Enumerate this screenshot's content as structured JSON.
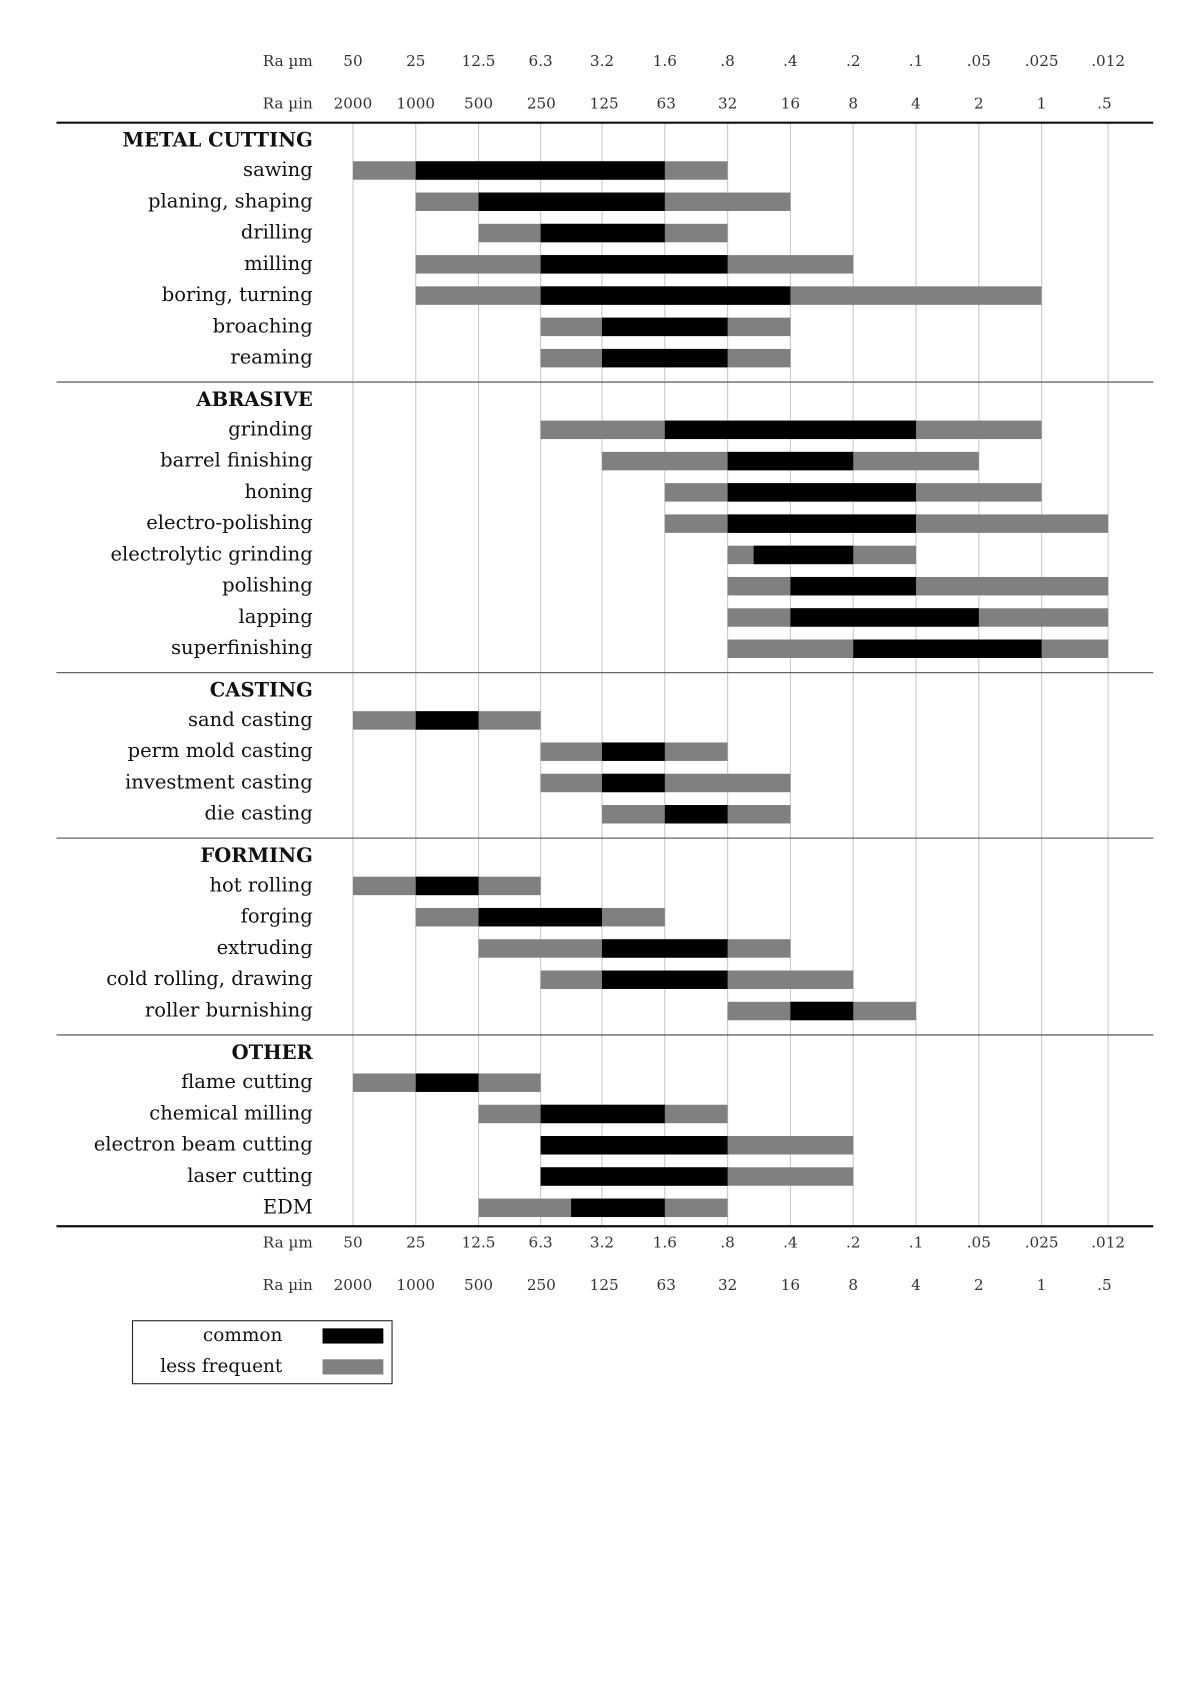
{
  "chart_data": {
    "type": "range-bar",
    "xlabel": "Ra µm",
    "x2label": "Ra µin",
    "xscale": "log",
    "xlim": [
      50,
      0.0125
    ],
    "xticks": [
      50,
      25,
      12.5,
      6.3,
      3.2,
      1.6,
      {
        "value": 0.8,
        "label": ".8"
      },
      {
        "value": 0.4,
        "label": ".4"
      },
      {
        "value": 0.2,
        "label": ".2"
      },
      {
        "value": 0.1,
        "label": ".1"
      },
      {
        "value": 0.05,
        "label": ".05"
      },
      {
        "value": 0.025,
        "label": ".025"
      },
      {
        "value": 0.012,
        "label": ".012"
      }
    ],
    "x2lim": [
      2000,
      0.5
    ],
    "x2ticks": [
      2000,
      1000,
      500,
      250,
      125,
      63,
      32,
      16,
      8,
      4,
      2,
      1,
      {
        "value": 0.5,
        "label": ".5"
      }
    ],
    "grid": true,
    "series": [
      {
        "name": "common",
        "color": "#000000"
      },
      {
        "name": "less frequent",
        "color": "#808080"
      }
    ],
    "groups": [
      {
        "name": "METAL CUTTING",
        "processes": [
          {
            "name": "sawing",
            "ranges": [
              [
                25,
                1.6
              ],
              [
                50,
                0.8
              ]
            ]
          },
          {
            "name": "planing, shaping",
            "ranges": [
              [
                12.5,
                1.6
              ],
              [
                25,
                0.4
              ]
            ]
          },
          {
            "name": "drilling",
            "ranges": [
              [
                6.3,
                1.6
              ],
              [
                12.5,
                0.8
              ]
            ]
          },
          {
            "name": "milling",
            "ranges": [
              [
                6.3,
                0.8
              ],
              [
                25,
                0.2
              ]
            ]
          },
          {
            "name": "boring, turning",
            "ranges": [
              [
                6.3,
                0.4
              ],
              [
                25,
                0.025
              ]
            ]
          },
          {
            "name": "broaching",
            "ranges": [
              [
                3.2,
                0.8
              ],
              [
                6.3,
                0.4
              ]
            ]
          },
          {
            "name": "reaming",
            "ranges": [
              [
                3.2,
                0.8
              ],
              [
                6.3,
                0.4
              ]
            ]
          }
        ]
      },
      {
        "name": "ABRASIVE",
        "processes": [
          {
            "name": "grinding",
            "ranges": [
              [
                1.6,
                0.1
              ],
              [
                6.3,
                0.025
              ]
            ]
          },
          {
            "name": "barrel finishing",
            "ranges": [
              [
                0.8,
                0.2
              ],
              [
                3.2,
                0.05
              ]
            ]
          },
          {
            "name": "honing",
            "ranges": [
              [
                0.8,
                0.1
              ],
              [
                1.6,
                0.025
              ]
            ]
          },
          {
            "name": "electro-polishing",
            "ranges": [
              [
                0.8,
                0.1
              ],
              [
                1.6,
                0.012
              ]
            ]
          },
          {
            "name": "electrolytic grinding",
            "ranges": [
              [
                0.6,
                0.2
              ],
              [
                0.8,
                0.1
              ]
            ]
          },
          {
            "name": "polishing",
            "ranges": [
              [
                0.4,
                0.1
              ],
              [
                0.8,
                0.012
              ]
            ]
          },
          {
            "name": "lapping",
            "ranges": [
              [
                0.4,
                0.05
              ],
              [
                0.8,
                0.012
              ]
            ]
          },
          {
            "name": "superfinishing",
            "ranges": [
              [
                0.2,
                0.025
              ],
              [
                0.8,
                0.012
              ]
            ]
          }
        ]
      },
      {
        "name": "CASTING",
        "processes": [
          {
            "name": "sand casting",
            "ranges": [
              [
                25,
                12.5
              ],
              [
                50,
                6.3
              ]
            ]
          },
          {
            "name": "perm mold casting",
            "ranges": [
              [
                3.2,
                1.6
              ],
              [
                6.3,
                0.8
              ]
            ]
          },
          {
            "name": "investment casting",
            "ranges": [
              [
                3.2,
                1.6
              ],
              [
                6.3,
                0.4
              ]
            ]
          },
          {
            "name": "die casting",
            "ranges": [
              [
                1.6,
                0.8
              ],
              [
                3.2,
                0.4
              ]
            ]
          }
        ]
      },
      {
        "name": "FORMING",
        "processes": [
          {
            "name": "hot rolling",
            "ranges": [
              [
                25,
                12.5
              ],
              [
                50,
                6.3
              ]
            ]
          },
          {
            "name": "forging",
            "ranges": [
              [
                12.5,
                3.2
              ],
              [
                25,
                1.6
              ]
            ]
          },
          {
            "name": "extruding",
            "ranges": [
              [
                3.2,
                0.8
              ],
              [
                12.5,
                0.4
              ]
            ]
          },
          {
            "name": "cold rolling, drawing",
            "ranges": [
              [
                3.2,
                0.8
              ],
              [
                6.3,
                0.2
              ]
            ]
          },
          {
            "name": "roller burnishing",
            "ranges": [
              [
                0.4,
                0.2
              ],
              [
                0.8,
                0.1
              ]
            ]
          }
        ]
      },
      {
        "name": "OTHER",
        "processes": [
          {
            "name": "flame cutting",
            "ranges": [
              [
                25,
                12.5
              ],
              [
                50,
                6.3
              ]
            ]
          },
          {
            "name": "chemical milling",
            "ranges": [
              [
                6.3,
                1.6
              ],
              [
                12.5,
                0.8
              ]
            ]
          },
          {
            "name": "electron beam cutting",
            "ranges": [
              [
                6.3,
                0.8
              ],
              [
                6.3,
                0.2
              ]
            ]
          },
          {
            "name": "laser cutting",
            "ranges": [
              [
                6.3,
                0.8
              ],
              [
                6.3,
                0.2
              ]
            ]
          },
          {
            "name": "EDM",
            "ranges": [
              [
                4.5,
                1.6
              ],
              [
                12.5,
                0.8
              ]
            ]
          }
        ]
      }
    ]
  }
}
